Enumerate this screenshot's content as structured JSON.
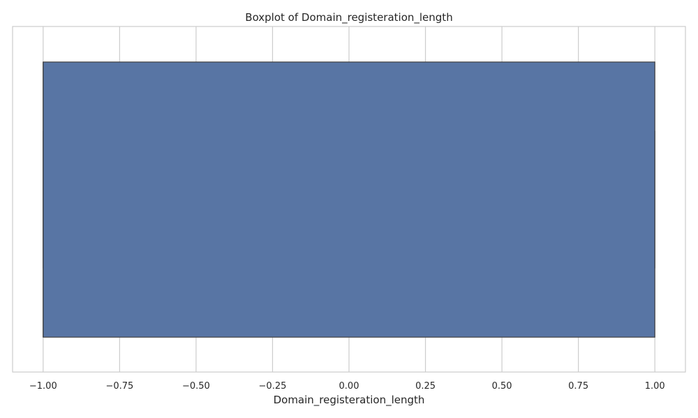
{
  "chart_data": {
    "type": "boxplot",
    "orientation": "horizontal",
    "title": "Boxplot of Domain_registeration_length",
    "xlabel": "Domain_registeration_length",
    "ylabel": "",
    "xlim": [
      -1.1,
      1.1
    ],
    "x_ticks": [
      -1.0,
      -0.75,
      -0.5,
      -0.25,
      0.0,
      0.25,
      0.5,
      0.75,
      1.0
    ],
    "x_tick_labels": [
      "−1.00",
      "−0.75",
      "−0.50",
      "−0.25",
      "0.00",
      "0.25",
      "0.50",
      "0.75",
      "1.00"
    ],
    "grid": true,
    "series": [
      {
        "min": -1.0,
        "q1": -1.0,
        "median": -1.0,
        "q3": 1.0,
        "max": 1.0,
        "outliers": []
      }
    ],
    "colors": {
      "box_fill": "#5875a4",
      "box_edge": "#404040",
      "grid": "#cccccc",
      "spine": "#cccccc",
      "background": "#ffffff"
    }
  }
}
